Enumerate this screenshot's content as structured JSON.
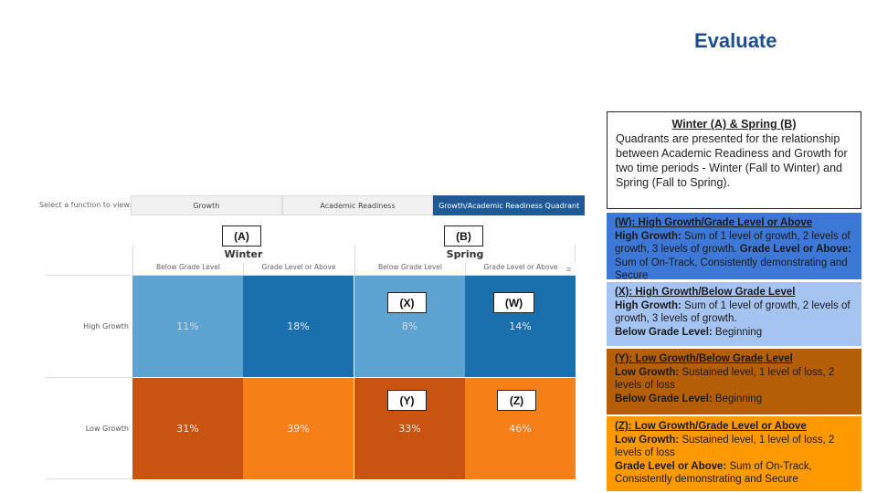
{
  "title": "Evaluate",
  "selector": {
    "label": "Select a function to view:",
    "options": [
      "Growth",
      "Academic Readiness",
      "Growth/Academic Readiness Quadrant"
    ],
    "selected": "Growth/Academic Readiness Quadrant"
  },
  "grid": {
    "column_groups": [
      "Winter",
      "Spring"
    ],
    "sub_headers": [
      "Below Grade Level",
      "Grade Level or Above",
      "Below Grade Level",
      "Grade Level or Above"
    ],
    "rows": [
      {
        "label": "High Growth",
        "values": [
          "11%",
          "18%",
          "8%",
          "14%"
        ]
      },
      {
        "label": "Low Growth",
        "values": [
          "31%",
          "39%",
          "33%",
          "46%"
        ]
      }
    ],
    "colors": {
      "high_light": "#5ca3d2",
      "high_dark": "#1a6fad",
      "low_dark": "#c95310",
      "low_light": "#f77f17"
    }
  },
  "annotations": {
    "a": "(A)",
    "b": "(B)",
    "x": "(X)",
    "w": "(W)",
    "y": "(Y)",
    "z": "(Z)"
  },
  "info": {
    "title": "Winter (A) & Spring (B)",
    "body": "Quadrants are presented for the relationship between Academic Readiness and Growth for two time periods - Winter (Fall to Winter) and Spring (Fall to Spring)."
  },
  "legend": {
    "w": {
      "title": "(W): High Growth/Grade Level or Above",
      "l1_bold": "High Growth:",
      "l1": " Sum of 1 level of growth, 2 levels of growth, 3 levels of growth. ",
      "l2_bold": "Grade Level or Above:",
      "l2": " Sum of On-Track, Consistently demonstrating and Secure",
      "bg": "#3e78d6"
    },
    "x": {
      "title": "(X): High Growth/Below Grade Level",
      "l1_bold": "High Growth:",
      "l1": " Sum of 1 level of growth, 2 levels of growth, 3 levels of growth.",
      "l2_bold": "Below Grade Level:",
      "l2": " Beginning",
      "bg": "#a6c4f2"
    },
    "y": {
      "title": "(Y): Low Growth/Below Grade Level",
      "l1_bold": "Low Growth:",
      "l1": " Sustained level, 1 level of loss, 2 levels of loss",
      "l2_bold": "Below Grade Level:",
      "l2": " Beginning",
      "bg": "#b45f06"
    },
    "z": {
      "title": "(Z): Low Growth/Grade Level or Above",
      "l1_bold": "Low Growth:",
      "l1": " Sustained level, 1 level of loss, 2 levels of loss",
      "l2_bold": "Grade Level or Above:",
      "l2": " Sum of On-Track, Consistently demonstrating and Secure",
      "bg": "#ff9900"
    }
  }
}
